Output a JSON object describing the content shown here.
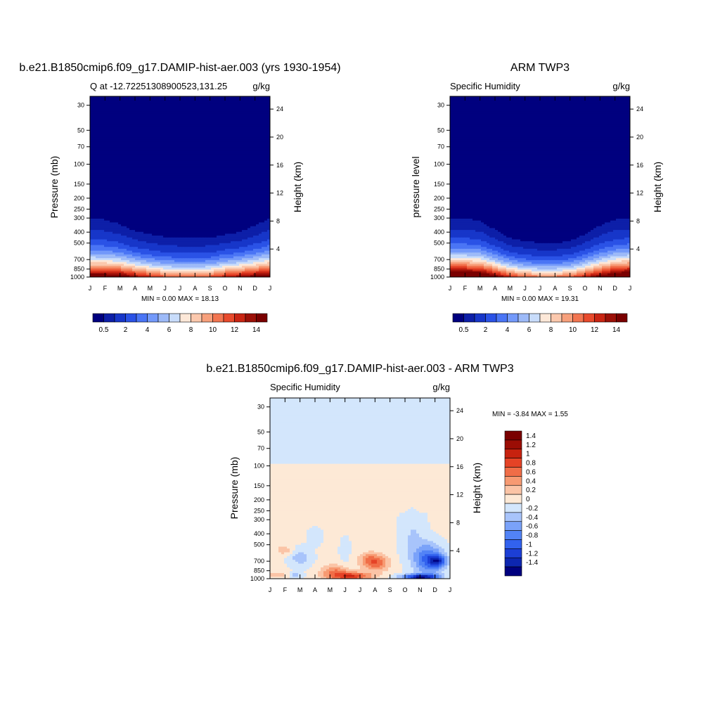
{
  "colors": {
    "palette_blue_red": [
      "#00007f",
      "#0d1fa8",
      "#1736c9",
      "#2a52e6",
      "#4a75f5",
      "#7399fa",
      "#9dbaf8",
      "#c8dcfb",
      "#fde8d8",
      "#fbc8ad",
      "#f7a07c",
      "#f27550",
      "#e84a2c",
      "#c92513",
      "#9c1008",
      "#7a0000"
    ],
    "palette_diff": [
      "#00007f",
      "#0d26b0",
      "#1c3fd6",
      "#3262ee",
      "#5283f6",
      "#7aa2f9",
      "#a8c4fb",
      "#d3e6fc",
      "#fde9d6",
      "#fbc4a6",
      "#f79a72",
      "#f06d47",
      "#e54326",
      "#c7220f",
      "#9b0d05",
      "#7a0000"
    ]
  },
  "charts": [
    {
      "id": "model",
      "title": "b.e21.B1850cmip6.f09_g17.DAMIP-hist-aer.003 (yrs 1930-1954)",
      "left_subtitle": "Q at -12.72251308900523,131.25",
      "right_subtitle": "g/kg",
      "ylabel": "Pressure (mb)",
      "ylabel_right": "Height (km)",
      "stats": "MIN =   0.00 MAX =  18.13",
      "colorbar_labels": [
        "0.5",
        "2",
        "4",
        "6",
        "8",
        "10",
        "12",
        "14"
      ]
    },
    {
      "id": "obs",
      "title": "ARM TWP3",
      "left_subtitle": "Specific Humidity",
      "right_subtitle": "g/kg",
      "ylabel": "pressure level",
      "ylabel_right": "Height (km)",
      "stats": "MIN =   0.00 MAX =  19.31",
      "colorbar_labels": [
        "0.5",
        "2",
        "4",
        "6",
        "8",
        "10",
        "12",
        "14"
      ]
    },
    {
      "id": "diff",
      "title": "b.e21.B1850cmip6.f09_g17.DAMIP-hist-aer.003 - ARM TWP3",
      "left_subtitle": "Specific Humidity",
      "right_subtitle": "g/kg",
      "ylabel": "Pressure (mb)",
      "ylabel_right": "Height (km)",
      "stats": "MIN =  -3.84 MAX =   1.55",
      "colorbar_labels": [
        "1.4",
        "1.2",
        "1",
        "0.8",
        "0.6",
        "0.4",
        "0.2",
        "0",
        "-0.2",
        "-0.4",
        "-0.6",
        "-0.8",
        "-1",
        "-1.2",
        "-1.4"
      ]
    }
  ],
  "chart_data": [
    {
      "type": "heatmap",
      "name": "model",
      "x_ticklabels": [
        "J",
        "F",
        "M",
        "A",
        "M",
        "J",
        "J",
        "A",
        "S",
        "O",
        "N",
        "D",
        "J"
      ],
      "y_ticks": [
        30,
        50,
        70,
        100,
        150,
        200,
        250,
        300,
        400,
        500,
        700,
        850,
        1000
      ],
      "y_ticks_right": [
        24,
        20,
        16,
        12,
        8,
        4
      ],
      "ylim": [
        1000,
        25
      ],
      "levels": [
        0.5,
        1,
        2,
        3,
        4,
        5,
        6,
        7,
        8,
        9,
        10,
        11,
        12,
        13,
        14
      ],
      "moist_layer_top_mb": [
        300,
        310,
        340,
        390,
        420,
        440,
        450,
        450,
        450,
        420,
        400,
        350,
        300
      ],
      "surface_q_gkg": [
        16,
        16,
        15.5,
        14,
        12.5,
        11.5,
        11,
        11,
        11.5,
        13,
        14,
        15,
        16
      ],
      "min": 0.0,
      "max": 18.13
    },
    {
      "type": "heatmap",
      "name": "obs",
      "x_ticklabels": [
        "J",
        "F",
        "M",
        "A",
        "M",
        "J",
        "J",
        "A",
        "S",
        "O",
        "N",
        "D",
        "J"
      ],
      "y_ticks": [
        30,
        50,
        70,
        100,
        150,
        200,
        250,
        300,
        400,
        500,
        700,
        850,
        1000
      ],
      "y_ticks_right": [
        24,
        20,
        16,
        12,
        8,
        4
      ],
      "ylim": [
        1000,
        25
      ],
      "levels": [
        0.5,
        1,
        2,
        3,
        4,
        5,
        6,
        7,
        8,
        9,
        10,
        11,
        12,
        13,
        14
      ],
      "moist_layer_top_mb": [
        300,
        300,
        320,
        380,
        450,
        480,
        500,
        500,
        480,
        420,
        350,
        310,
        300
      ],
      "surface_q_gkg": [
        18,
        18,
        17.5,
        15,
        12.5,
        11,
        10.5,
        10.5,
        11,
        13,
        15,
        17,
        18
      ],
      "min": 0.0,
      "max": 19.31
    },
    {
      "type": "heatmap",
      "name": "diff",
      "x_ticklabels": [
        "J",
        "F",
        "M",
        "A",
        "M",
        "J",
        "J",
        "A",
        "S",
        "O",
        "N",
        "D",
        "J"
      ],
      "y_ticks": [
        30,
        50,
        70,
        100,
        150,
        200,
        250,
        300,
        400,
        500,
        700,
        850,
        1000
      ],
      "y_ticks_right": [
        24,
        20,
        16,
        12,
        8,
        4
      ],
      "ylim": [
        1000,
        25
      ],
      "levels": [
        -1.4,
        -1.2,
        -1,
        -0.8,
        -0.6,
        -0.4,
        -0.2,
        0,
        0.2,
        0.4,
        0.6,
        0.8,
        1,
        1.2,
        1.4
      ],
      "min": -3.84,
      "max": 1.55
    }
  ]
}
